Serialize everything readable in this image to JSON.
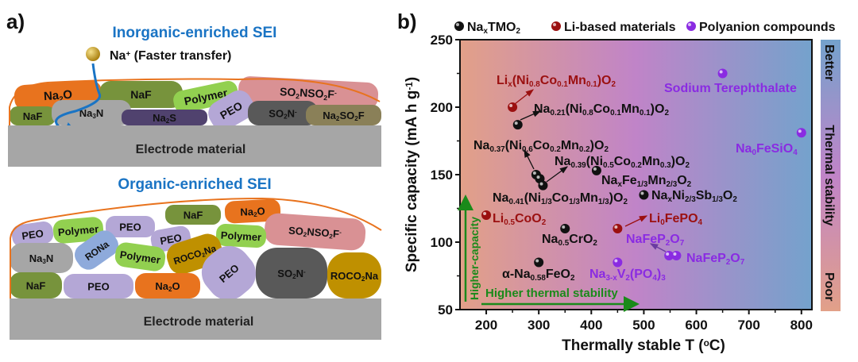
{
  "panel_a": {
    "label": "a)",
    "inorganic": {
      "title": "Inorganic-enriched SEI",
      "ion_label": "Na^{+} (Faster transfer)",
      "electrode": "Electrode material",
      "components": [
        "Na_{2}O",
        "NaF",
        "Polymer",
        "SO_{2}NSO_{2}F^{-}",
        "NaF",
        "Na_{3}N",
        "Na_{2}S",
        "PEO",
        "SO_{2}N^{-}",
        "Na_{2}SO_{2}F"
      ]
    },
    "organic": {
      "title": "Organic-enriched SEI",
      "electrode": "Electrode material",
      "components": [
        "PEO",
        "Polymer",
        "PEO",
        "NaF",
        "Na_{2}O",
        "SO_{2}NSO_{2}F^{-}",
        "PEO",
        "Polymer",
        "Na_{3}N",
        "RONa",
        "Polymer",
        "ROCO_{2}Na",
        "NaF",
        "PEO",
        "Na_{2}O",
        "PEO",
        "SO_{2}N^{-}",
        "ROCO_{2}Na"
      ]
    },
    "colors": {
      "title": "#1a74c4",
      "outline": "#e8731e",
      "electrode": "#a6a6a6",
      "ion": "#b8860b"
    }
  },
  "chart_data": {
    "type": "scatter",
    "panel_label": "b)",
    "xlabel": "Thermally stable T (^{o}C)",
    "ylabel": "Specific capacity (mA h g^{-1})",
    "xlim": [
      150,
      820
    ],
    "ylim": [
      50,
      250
    ],
    "xticks": [
      200,
      300,
      400,
      500,
      600,
      700,
      800
    ],
    "yticks": [
      50,
      100,
      150,
      200,
      250
    ],
    "grid": false,
    "legend_position": "top",
    "background": "horizontal gradient salmon → purple → blue",
    "series": [
      {
        "name": "Na_{x}TMO_{2}",
        "color": "#111111",
        "points": [
          [
            260,
            187
          ],
          [
            295,
            150
          ],
          [
            302,
            147
          ],
          [
            308,
            142
          ],
          [
            410,
            153
          ],
          [
            500,
            135
          ],
          [
            350,
            110
          ],
          [
            300,
            85
          ]
        ]
      },
      {
        "name": "Li-based materials",
        "color": "#9b1010",
        "points": [
          [
            250,
            200
          ],
          [
            200,
            120
          ],
          [
            450,
            110
          ]
        ]
      },
      {
        "name": "Polyanion compounds",
        "color": "#8a2be2",
        "points": [
          [
            650,
            225
          ],
          [
            800,
            181
          ],
          [
            450,
            85
          ],
          [
            548,
            90
          ],
          [
            562,
            90
          ]
        ]
      }
    ],
    "annotations": [
      {
        "text": "Li_{x}(Ni_{0.8}Co_{0.1}Mn_{0.1})O_{2}",
        "color": "#9b1010"
      },
      {
        "text": "Na_{0.21}(Ni_{0.8}Co_{0.1}Mn_{0.1})O_{2}",
        "color": "#111111"
      },
      {
        "text": "Na_{0.37}(Ni_{0.6}Co_{0.2}Mn_{0.2})O_{2}",
        "color": "#111111"
      },
      {
        "text": "Na_{0.39}(Ni_{0.5}Co_{0.2}Mn_{0.3})O_{2}",
        "color": "#111111"
      },
      {
        "text": "Na_{x}Fe_{1/3}Mn_{2/3}O_{2}",
        "color": "#111111"
      },
      {
        "text": "Na_{0.41}(Ni_{1/3}Co_{1/3}Mn_{1/3})O_{2}",
        "color": "#111111"
      },
      {
        "text": "Na_{x}Ni_{2/3}Sb_{1/3}O_{2}",
        "color": "#111111"
      },
      {
        "text": "Li_{0.5}CoO_{2}",
        "color": "#9b1010"
      },
      {
        "text": "Li_{0}FePO_{4}",
        "color": "#9b1010"
      },
      {
        "text": "Na_{0.5}CrO_{2}",
        "color": "#111111"
      },
      {
        "text": "NaFeP_{2}O_{7}",
        "color": "#8a2be2"
      },
      {
        "text": "NaFeP_{2}O_{7}",
        "color": "#8a2be2"
      },
      {
        "text": "α-Na_{0.58}FeO_{2}",
        "color": "#111111"
      },
      {
        "text": "Na_{3-x}V_{2}(PO_{4})_{3}",
        "color": "#8a2be2"
      },
      {
        "text": "Sodium Terephthalate",
        "color": "#8a2be2"
      },
      {
        "text": "Na_{0}FeSiO_{4}",
        "color": "#8a2be2"
      }
    ],
    "guide_arrows": {
      "vertical": "Higher-capacity",
      "horizontal": "Higher thermal stability",
      "color": "#1a8a1a"
    },
    "side_scale": {
      "top": "Better",
      "middle": "Thermal stability",
      "bottom": "Poor"
    }
  }
}
